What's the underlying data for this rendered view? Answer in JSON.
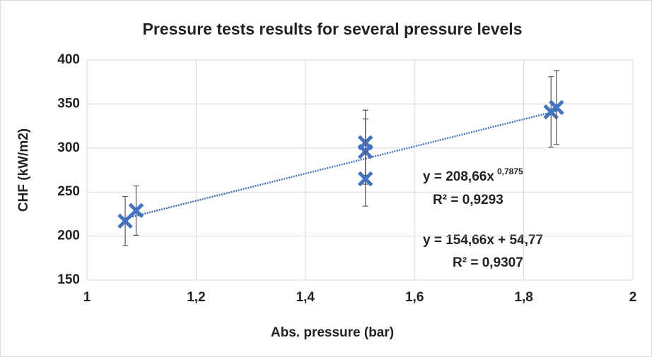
{
  "chart_data": {
    "type": "scatter",
    "title": "Pressure tests results for several pressure levels",
    "xlabel": "Abs. pressure (bar)",
    "ylabel": "CHF (kW/m2)",
    "xlim": [
      1,
      2
    ],
    "ylim": [
      150,
      400
    ],
    "xticks": [
      1,
      {
        "value": 1.2,
        "label": "1,2"
      },
      {
        "value": 1.4,
        "label": "1,4"
      },
      {
        "value": 1.6,
        "label": "1,6"
      },
      {
        "value": 1.8,
        "label": "1,8"
      },
      2
    ],
    "yticks": [
      150,
      200,
      250,
      300,
      350,
      400
    ],
    "grid": true,
    "series": [
      {
        "color": "#4472c4",
        "x": [
          1.07,
          1.09,
          1.51,
          1.51,
          1.51,
          1.85,
          1.86
        ],
        "values": [
          217,
          229,
          306,
          296,
          265,
          341,
          346
        ],
        "errors": [
          28,
          28,
          37,
          37,
          31,
          40,
          42
        ]
      }
    ],
    "trendline": {
      "color": "#4472c4",
      "x": [
        1.07,
        1.86
      ],
      "values": [
        220,
        342
      ]
    },
    "annotations": [
      {
        "text": "y = 208,66x",
        "sup": "0,7875"
      },
      {
        "text": "R² = 0,9293"
      },
      {
        "text": "y = 154,66x + 54,77"
      },
      {
        "text": "R² = 0,9307"
      }
    ]
  }
}
